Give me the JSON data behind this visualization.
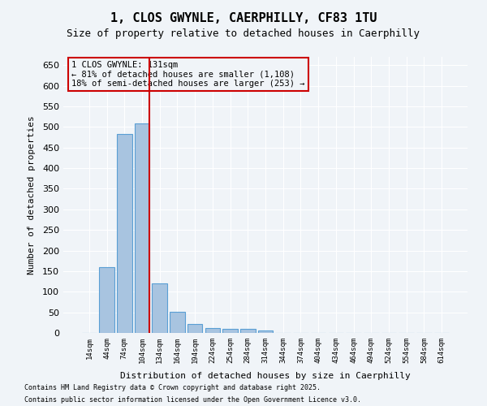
{
  "title_line1": "1, CLOS GWYNLE, CAERPHILLY, CF83 1TU",
  "title_line2": "Size of property relative to detached houses in Caerphilly",
  "xlabel": "Distribution of detached houses by size in Caerphilly",
  "ylabel": "Number of detached properties",
  "categories": [
    "14sqm",
    "44sqm",
    "74sqm",
    "104sqm",
    "134sqm",
    "164sqm",
    "194sqm",
    "224sqm",
    "254sqm",
    "284sqm",
    "314sqm",
    "344sqm",
    "374sqm",
    "404sqm",
    "434sqm",
    "464sqm",
    "494sqm",
    "524sqm",
    "554sqm",
    "584sqm",
    "614sqm"
  ],
  "values": [
    0,
    160,
    483,
    508,
    120,
    52,
    22,
    11,
    10,
    10,
    6,
    0,
    0,
    0,
    0,
    0,
    0,
    0,
    0,
    0,
    0
  ],
  "bar_color": "#a8c4e0",
  "bar_edge_color": "#5a9fd4",
  "property_line_x": 3.7,
  "annotation_text_line1": "1 CLOS GWYNLE: 131sqm",
  "annotation_text_line2": "← 81% of detached houses are smaller (1,108)",
  "annotation_text_line3": "18% of semi-detached houses are larger (253) →",
  "annotation_box_color": "#cc0000",
  "ylim": [
    0,
    670
  ],
  "yticks": [
    0,
    50,
    100,
    150,
    200,
    250,
    300,
    350,
    400,
    450,
    500,
    550,
    600,
    650
  ],
  "footnote1": "Contains HM Land Registry data © Crown copyright and database right 2025.",
  "footnote2": "Contains public sector information licensed under the Open Government Licence v3.0.",
  "background_color": "#f0f4f8",
  "grid_color": "#ffffff"
}
